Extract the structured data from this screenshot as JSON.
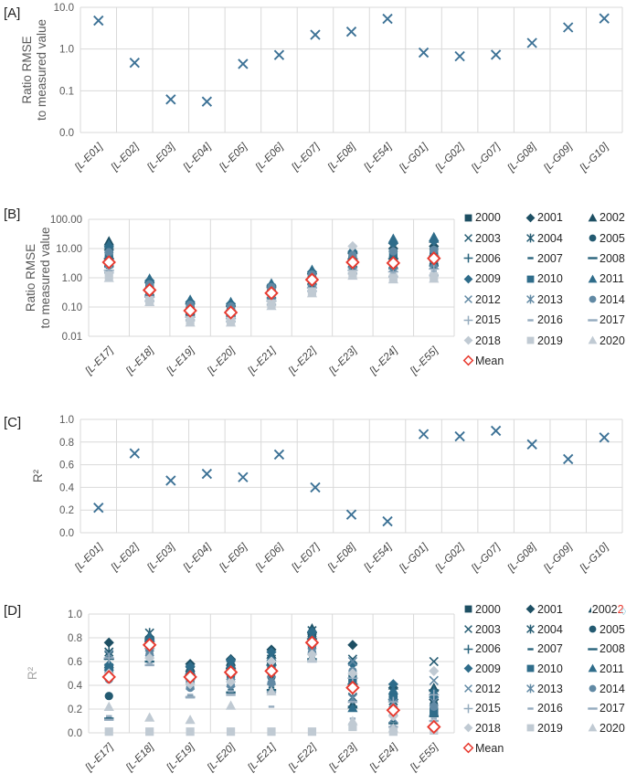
{
  "colors": {
    "grid": "#d9d9d9",
    "tick_label": "#595959",
    "category_label": "#404040",
    "axis_title": "#595959",
    "axis_title_light": "#a6a6a6",
    "panel_label": "#1f1f1f",
    "single_marker": "#3d7296",
    "mean": "#e8392e",
    "artifact_red": "#e8392e",
    "artifact_cyan": "#9fd4e3"
  },
  "years": [
    {
      "label": "2000",
      "marker": "square",
      "color": "#1d4f63"
    },
    {
      "label": "2001",
      "marker": "diamond",
      "color": "#1d4f63"
    },
    {
      "label": "2002",
      "marker": "triangle",
      "color": "#1d4f63"
    },
    {
      "label": "2003",
      "marker": "x",
      "color": "#235a71"
    },
    {
      "label": "2004",
      "marker": "star",
      "color": "#235a71"
    },
    {
      "label": "2005",
      "marker": "circle",
      "color": "#235a71"
    },
    {
      "label": "2006",
      "marker": "plus",
      "color": "#29637c"
    },
    {
      "label": "2007",
      "marker": "dash-short",
      "color": "#29637c"
    },
    {
      "label": "2008",
      "marker": "dash-long",
      "color": "#29637c"
    },
    {
      "label": "2009",
      "marker": "diamond",
      "color": "#2e6c8a"
    },
    {
      "label": "2010",
      "marker": "square",
      "color": "#2e6c8a"
    },
    {
      "label": "2011",
      "marker": "triangle",
      "color": "#2e6c8a"
    },
    {
      "label": "2012",
      "marker": "x",
      "color": "#6189a4"
    },
    {
      "label": "2013",
      "marker": "star",
      "color": "#6189a4"
    },
    {
      "label": "2014",
      "marker": "circle",
      "color": "#6189a4"
    },
    {
      "label": "2015",
      "marker": "plus",
      "color": "#95abbe"
    },
    {
      "label": "2016",
      "marker": "dash-short",
      "color": "#95abbe"
    },
    {
      "label": "2017",
      "marker": "dash-long",
      "color": "#95abbe"
    },
    {
      "label": "2018",
      "marker": "diamond",
      "color": "#c0cad3"
    },
    {
      "label": "2019",
      "marker": "square",
      "color": "#c0cad3"
    },
    {
      "label": "2020",
      "marker": "triangle",
      "color": "#c0cad3"
    }
  ],
  "mean_legend": {
    "label": "Mean",
    "marker": "open-diamond",
    "color": "#e8392e"
  },
  "legend_artifact": {
    "panel": "D",
    "attach_to_year": "2002",
    "red_text": "2",
    "diamond_char": "◊"
  },
  "chart_data": [
    {
      "id": "A",
      "panel_label": "[A]",
      "type": "scatter",
      "yscale": "log",
      "ylim": [
        0.01,
        10
      ],
      "ylabel": "Ratio RMSE to measured value",
      "ylabel_lines": [
        "Ratio RMSE",
        "to measured value"
      ],
      "yticks": [
        {
          "value": 10,
          "label": "10.0"
        },
        {
          "value": 1,
          "label": "1.0"
        },
        {
          "value": 0.1,
          "label": "0.1"
        },
        {
          "value": 0.01,
          "label": "0.0"
        }
      ],
      "categories": [
        "[L-E01]",
        "[L-E02]",
        "[L-E03]",
        "[L-E04]",
        "[L-E05]",
        "[L-E06]",
        "[L-E07]",
        "[L-E08]",
        "[L-E54]",
        "[L-G01]",
        "[L-G02]",
        "[L-G07]",
        "[L-G08]",
        "[L-G09]",
        "[L-G10]"
      ],
      "values": [
        4.8,
        0.47,
        0.062,
        0.055,
        0.44,
        0.72,
        2.2,
        2.6,
        5.3,
        0.82,
        0.67,
        0.73,
        1.4,
        3.3,
        5.4
      ],
      "grid": true,
      "legend": false
    },
    {
      "id": "B",
      "panel_label": "[B]",
      "type": "scatter-multi",
      "yscale": "log",
      "ylim": [
        0.01,
        100
      ],
      "ylabel": "Ratio RMSE to measured value",
      "ylabel_lines": [
        "Ratio RMSE",
        "to measured value"
      ],
      "yticks": [
        {
          "value": 100,
          "label": "100.00"
        },
        {
          "value": 10,
          "label": "10.00"
        },
        {
          "value": 1,
          "label": "1.00"
        },
        {
          "value": 0.1,
          "label": "0.10"
        },
        {
          "value": 0.01,
          "label": "0.01"
        }
      ],
      "categories": [
        "[L-E17]",
        "[L-E18]",
        "[L-E19]",
        "[L-E20]",
        "[L-E21]",
        "[L-E22]",
        "[L-E23]",
        "[L-E24]",
        "[L-E55]"
      ],
      "years_series": [
        [
          4.0,
          0.45,
          0.09,
          0.08,
          0.35,
          1.0,
          4.0,
          4.0,
          5.0
        ],
        [
          9,
          0.7,
          0.13,
          0.11,
          0.5,
          1.4,
          7,
          10,
          12
        ],
        [
          18,
          0.9,
          0.17,
          0.14,
          0.62,
          1.8,
          9,
          20,
          22
        ],
        [
          3.2,
          0.35,
          0.07,
          0.06,
          0.28,
          0.8,
          3.2,
          3.0,
          4.0
        ],
        [
          5.5,
          0.5,
          0.1,
          0.09,
          0.4,
          1.1,
          5.0,
          6.0,
          7.0
        ],
        [
          2.8,
          0.3,
          0.06,
          0.055,
          0.25,
          0.7,
          2.8,
          2.6,
          3.5
        ],
        [
          4.5,
          0.42,
          0.08,
          0.075,
          0.32,
          0.95,
          4.4,
          4.5,
          5.5
        ],
        [
          2.2,
          0.2,
          0.05,
          0.045,
          0.18,
          0.5,
          2.0,
          1.8,
          2.2
        ],
        [
          2.5,
          0.25,
          0.055,
          0.05,
          0.2,
          0.6,
          2.3,
          2.1,
          2.6
        ],
        [
          12,
          0.8,
          0.15,
          0.13,
          0.55,
          1.6,
          8,
          15,
          18
        ],
        [
          6.5,
          0.55,
          0.11,
          0.1,
          0.45,
          1.2,
          5.5,
          7,
          8
        ],
        [
          14,
          0.95,
          0.18,
          0.15,
          0.65,
          1.9,
          10,
          22,
          25
        ],
        [
          2.0,
          0.28,
          0.05,
          0.045,
          0.22,
          0.65,
          2.5,
          2.2,
          2.8
        ],
        [
          3.0,
          0.33,
          0.065,
          0.06,
          0.27,
          0.75,
          3.0,
          2.8,
          3.3
        ],
        [
          7.5,
          0.6,
          0.12,
          0.105,
          0.48,
          1.3,
          6.0,
          8.0,
          9.0
        ],
        [
          1.8,
          0.22,
          0.045,
          0.04,
          0.16,
          0.45,
          1.8,
          1.6,
          2.0
        ],
        [
          2.4,
          0.18,
          0.04,
          0.038,
          0.14,
          0.4,
          1.6,
          1.4,
          1.7
        ],
        [
          1.5,
          0.16,
          0.035,
          0.032,
          0.12,
          0.35,
          1.4,
          1.1,
          1.2
        ],
        [
          3.5,
          0.4,
          0.08,
          0.07,
          0.3,
          0.9,
          12,
          3.5,
          4.5
        ],
        [
          1.2,
          0.17,
          0.035,
          0.033,
          0.13,
          0.33,
          1.3,
          1.0,
          1.1
        ],
        [
          1.0,
          0.15,
          0.03,
          0.03,
          0.11,
          0.3,
          1.2,
          0.9,
          0.95
        ]
      ],
      "mean_values": [
        3.4,
        0.38,
        0.075,
        0.065,
        0.3,
        0.86,
        3.4,
        3.2,
        4.6
      ],
      "grid": true,
      "legend": true
    },
    {
      "id": "C",
      "panel_label": "[C]",
      "type": "scatter",
      "yscale": "linear",
      "ylim": [
        0,
        1
      ],
      "ylabel": "R²",
      "ylabel_lines": [
        "R²"
      ],
      "yticks": [
        {
          "value": 1,
          "label": "1.0"
        },
        {
          "value": 0.8,
          "label": "0.8"
        },
        {
          "value": 0.6,
          "label": "0.6"
        },
        {
          "value": 0.4,
          "label": "0.4"
        },
        {
          "value": 0.2,
          "label": "0.2"
        },
        {
          "value": 0,
          "label": "0.0"
        }
      ],
      "categories": [
        "[L-E01]",
        "[L-E02]",
        "[L-E03]",
        "[L-E04]",
        "[L-E05]",
        "[L-E06]",
        "[L-E07]",
        "[L-E08]",
        "[L-E54]",
        "[L-G01]",
        "[L-G02]",
        "[L-G07]",
        "[L-G08]",
        "[L-G09]",
        "[L-G10]"
      ],
      "values": [
        0.22,
        0.7,
        0.46,
        0.52,
        0.49,
        0.69,
        0.4,
        0.16,
        0.1,
        0.87,
        0.85,
        0.9,
        0.78,
        0.65,
        0.84
      ],
      "grid": true,
      "legend": false
    },
    {
      "id": "D",
      "panel_label": "[D]",
      "type": "scatter-multi",
      "yscale": "linear",
      "ylim": [
        0,
        1
      ],
      "ylabel": "R²",
      "ylabel_lines": [
        "R²"
      ],
      "ylabel_light": true,
      "yticks": [
        {
          "value": 1,
          "label": "1.0"
        },
        {
          "value": 0.8,
          "label": "0.8"
        },
        {
          "value": 0.6,
          "label": "0.6"
        },
        {
          "value": 0.4,
          "label": "0.4"
        },
        {
          "value": 0.2,
          "label": "0.2"
        },
        {
          "value": 0,
          "label": "0.0"
        }
      ],
      "categories": [
        "[L-E17]",
        "[L-E18]",
        "[L-E19]",
        "[L-E20]",
        "[L-E21]",
        "[L-E22]",
        "[L-E23]",
        "[L-E24]",
        "[L-E55]"
      ],
      "years_series": [
        [
          0.55,
          0.78,
          0.5,
          0.55,
          0.58,
          0.8,
          0.42,
          0.3,
          0.18
        ],
        [
          0.76,
          0.8,
          0.58,
          0.62,
          0.7,
          0.84,
          0.74,
          0.38,
          0.28
        ],
        [
          0.58,
          0.82,
          0.55,
          0.6,
          0.66,
          0.88,
          0.24,
          0.4,
          0.38
        ],
        [
          0.65,
          0.76,
          0.48,
          0.52,
          0.55,
          0.78,
          0.62,
          0.27,
          0.6
        ],
        [
          0.68,
          0.84,
          0.52,
          0.57,
          0.62,
          0.86,
          0.3,
          0.35,
          0.33
        ],
        [
          0.31,
          0.7,
          0.42,
          0.45,
          0.47,
          0.72,
          0.48,
          0.33,
          0.24
        ],
        [
          0.62,
          0.77,
          0.49,
          0.54,
          0.57,
          0.79,
          0.41,
          0.28,
          0.36
        ],
        [
          0.13,
          0.62,
          0.31,
          0.36,
          0.38,
          0.64,
          0.28,
          0.1,
          0.16
        ],
        [
          0.12,
          0.6,
          0.3,
          0.34,
          0.36,
          0.62,
          0.22,
          0.08,
          0.14
        ],
        [
          0.57,
          0.79,
          0.56,
          0.61,
          0.68,
          0.85,
          0.58,
          0.41,
          0.3
        ],
        [
          0.52,
          0.74,
          0.46,
          0.5,
          0.53,
          0.76,
          0.44,
          0.29,
          0.17
        ],
        [
          0.56,
          0.81,
          0.53,
          0.58,
          0.64,
          0.82,
          0.21,
          0.36,
          0.35
        ],
        [
          0.66,
          0.72,
          0.44,
          0.48,
          0.5,
          0.74,
          0.6,
          0.12,
          0.44
        ],
        [
          0.48,
          0.68,
          0.4,
          0.42,
          0.44,
          0.7,
          0.29,
          0.25,
          0.26
        ],
        [
          0.45,
          0.66,
          0.38,
          0.4,
          0.42,
          0.68,
          0.52,
          0.2,
          0.22
        ],
        [
          0.63,
          0.71,
          0.45,
          0.49,
          0.52,
          0.75,
          0.46,
          0.26,
          0.32
        ],
        [
          0.14,
          0.58,
          0.32,
          0.35,
          0.22,
          0.61,
          0.12,
          0.06,
          0.12
        ],
        [
          0.11,
          0.57,
          0.3,
          0.32,
          0.34,
          0.6,
          0.26,
          0.05,
          0.1
        ],
        [
          0.5,
          0.63,
          0.41,
          0.43,
          0.6,
          0.66,
          0.5,
          0.14,
          0.52
        ],
        [
          0.01,
          0.01,
          0.01,
          0.01,
          0.01,
          0.01,
          0.05,
          0.01,
          0.02
        ],
        [
          0.22,
          0.13,
          0.11,
          0.23,
          0.35,
          0.63,
          0.1,
          0.04,
          0.08
        ]
      ],
      "mean_values": [
        0.47,
        0.74,
        0.47,
        0.51,
        0.52,
        0.76,
        0.38,
        0.19,
        0.05
      ],
      "grid": true,
      "legend": true
    }
  ]
}
